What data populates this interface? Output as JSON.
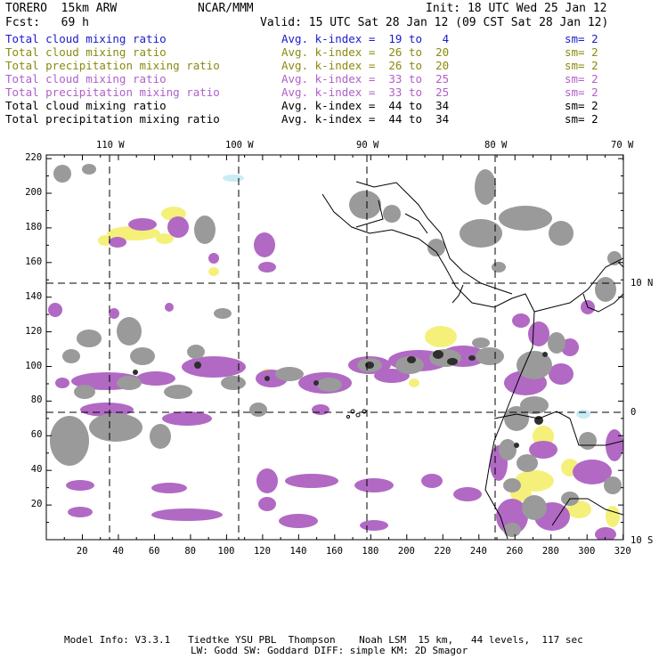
{
  "header": {
    "model": "TORERO  15km ARW",
    "org": "NCAR/MMM",
    "init": "Init: 18 UTC Wed 25 Jan 12",
    "fcst": "Fcst:   69 h",
    "valid": "Valid: 15 UTC Sat 28 Jan 12 (09 CST Sat 28 Jan 12)"
  },
  "legend": [
    {
      "field": "Total cloud mixing ratio",
      "kindex": "Avg. k-index =  19 to   4",
      "sm": "sm= 2",
      "color": "#1a1acc"
    },
    {
      "field": "Total cloud mixing ratio",
      "kindex": "Avg. k-index =  26 to  20",
      "sm": "sm= 2",
      "color": "#8a8a10"
    },
    {
      "field": "Total precipitation mixing ratio",
      "kindex": "Avg. k-index =  26 to  20",
      "sm": "sm= 2",
      "color": "#8a8a10"
    },
    {
      "field": "Total cloud mixing ratio",
      "kindex": "Avg. k-index =  33 to  25",
      "sm": "sm= 2",
      "color": "#b060c8"
    },
    {
      "field": "Total precipitation mixing ratio",
      "kindex": "Avg. k-index =  33 to  25",
      "sm": "sm= 2",
      "color": "#b060c8"
    },
    {
      "field": "Total cloud mixing ratio",
      "kindex": "Avg. k-index =  44 to  34",
      "sm": "sm= 2",
      "color": "#000000"
    },
    {
      "field": "Total precipitation mixing ratio",
      "kindex": "Avg. k-index =  44 to  34",
      "sm": "sm= 2",
      "color": "#000000"
    }
  ],
  "map": {
    "lon_labels": [
      "110 W",
      "100 W",
      "90 W",
      "80 W",
      "70 W"
    ],
    "lat_labels": [
      "10 N",
      "0",
      "10 S"
    ],
    "x_grid_ticks": [
      "20",
      "40",
      "60",
      "80",
      "100",
      "120",
      "140",
      "160",
      "180",
      "200",
      "220",
      "240",
      "260",
      "280",
      "300",
      "320"
    ],
    "y_grid_ticks": [
      "220",
      "200",
      "180",
      "160",
      "140",
      "120",
      "100",
      "80",
      "60",
      "40",
      "20"
    ],
    "colors": {
      "gray": "#9a9a9a",
      "dark": "#3a3a3a",
      "purple": "#b169c4",
      "yellow": "#f5f07a",
      "cyan": "#c8ecf4"
    }
  },
  "footer": {
    "line1": "Model Info: V3.3.1   Tiedtke YSU PBL  Thompson    Noah LSM  15 km,   44 levels,  117 sec",
    "line2": "LW: Godd SW: Goddard DIFF: simple KM: 2D Smagor"
  }
}
